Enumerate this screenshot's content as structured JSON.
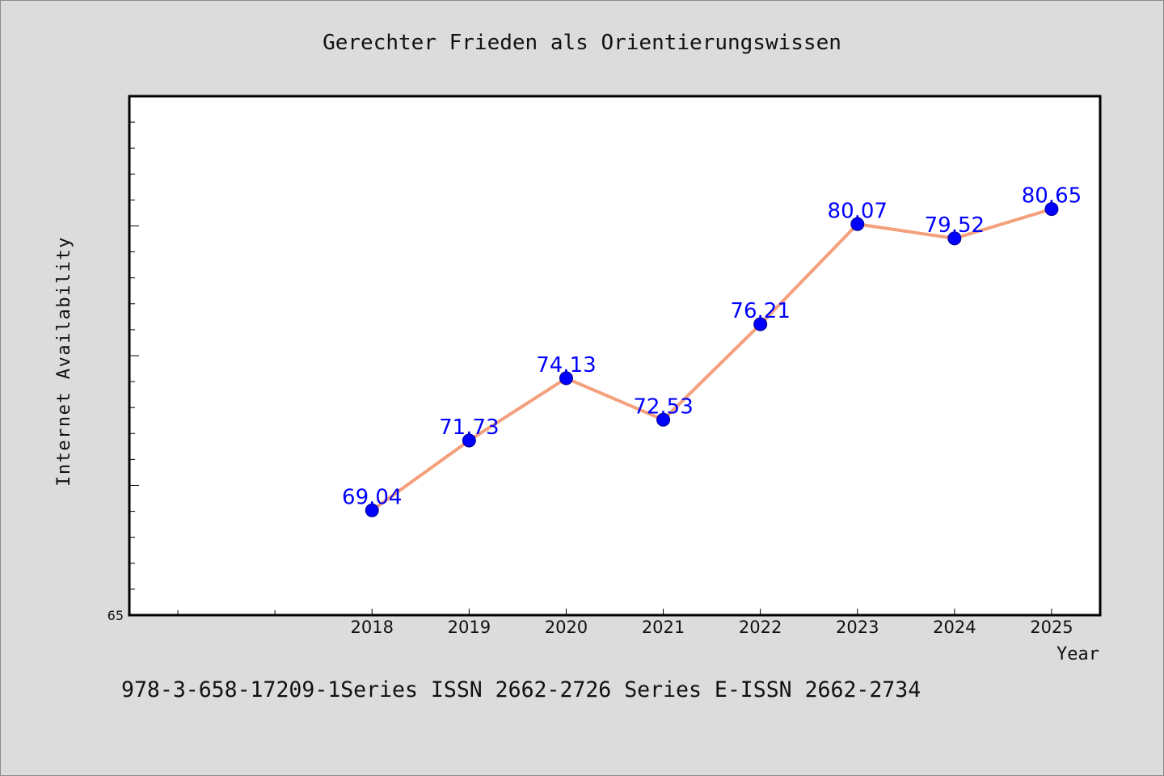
{
  "chart_data": {
    "type": "line",
    "title": "Gerechter Frieden als Orientierungswissen",
    "xlabel": "Year",
    "ylabel": "Internet Availability",
    "categories": [
      "2018",
      "2019",
      "2020",
      "2021",
      "2022",
      "2023",
      "2024",
      "2025"
    ],
    "x": [
      2018,
      2019,
      2020,
      2021,
      2022,
      2023,
      2024,
      2025
    ],
    "x_minor_ticks": [
      2016,
      2017
    ],
    "xlim": [
      2015.5,
      2025.5
    ],
    "series": [
      {
        "values": [
          69.04,
          71.73,
          74.13,
          72.53,
          76.21,
          80.07,
          79.52,
          80.65
        ]
      }
    ],
    "ylim": [
      65,
      85
    ],
    "y_minor_step": 1,
    "y_major_step": 5,
    "y_labeled_ticks": [
      65
    ],
    "grid": false,
    "legend": "none",
    "colors": {
      "background": "#dcdcdc",
      "plot_background": "#ffffff",
      "line": "#f4a07c",
      "marker": "#0000ff",
      "marker_edge": "#00008b",
      "data_label": "#0000ff"
    }
  },
  "footer": {
    "text": "978-3-658-17209-1Series ISSN 2662-2726 Series E-ISSN 2662-2734"
  }
}
